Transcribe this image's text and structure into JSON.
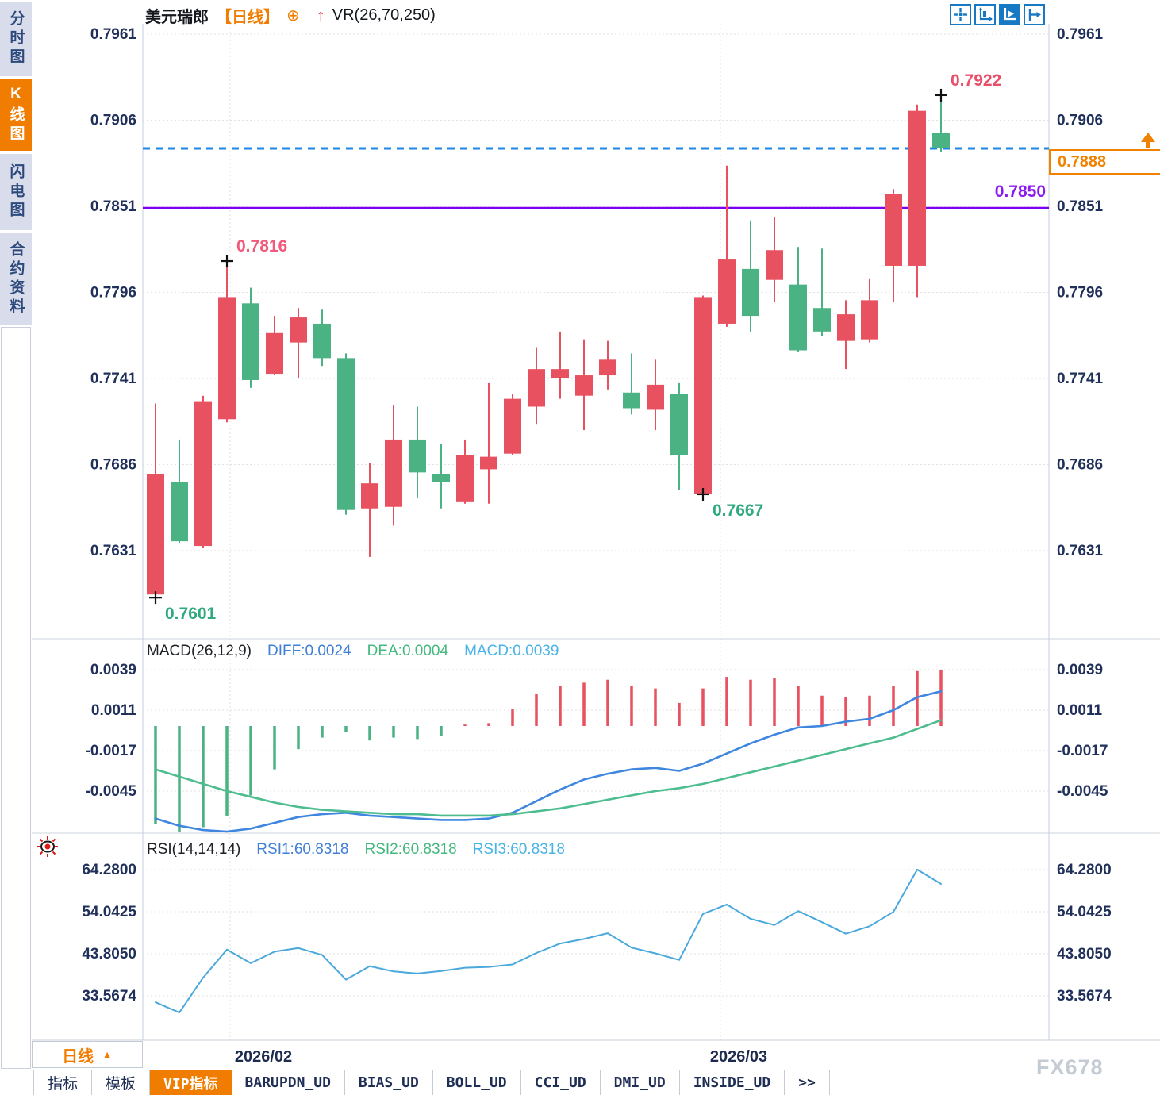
{
  "window": {
    "watermark": "FX678"
  },
  "sidebar": {
    "tabs": [
      {
        "label": "分时图",
        "active": false
      },
      {
        "label": "K线图",
        "active": true
      },
      {
        "label": "闪电图",
        "active": false
      },
      {
        "label": "合约资料",
        "active": false
      }
    ]
  },
  "header": {
    "symbol": "美元瑞郎",
    "period_tag": "【日线】",
    "indicator": "VR(26,70,250)",
    "crosshair_icon": "⊕",
    "up_arrow_icon": "↑"
  },
  "toolbar_icons": [
    "crosshair-pan-icon",
    "fit-axis-icon",
    "auto-scroll-latest-icon",
    "goto-latest-icon"
  ],
  "macd_panel": {
    "title": "MACD(26,12,9)",
    "diff": "DIFF:0.0024",
    "dea": "DEA:0.0004",
    "macd": "MACD:0.0039"
  },
  "rsi_panel": {
    "title": "RSI(14,14,14)",
    "rsi1": "RSI1:60.8318",
    "rsi2": "RSI2:60.8318",
    "rsi3": "RSI3:60.8318"
  },
  "support_label": {
    "value": "0.7850"
  },
  "price_box": {
    "value": "0.7888"
  },
  "period_selector": {
    "label": "日线",
    "arrow": "▲"
  },
  "bottom_tabs": [
    {
      "label": "指标",
      "active": false
    },
    {
      "label": "模板",
      "active": false
    },
    {
      "label": "VIP指标",
      "active": true
    },
    {
      "label": "BARUPDN_UD",
      "active": false
    },
    {
      "label": "BIAS_UD",
      "active": false
    },
    {
      "label": "BOLL_UD",
      "active": false
    },
    {
      "label": "CCI_UD",
      "active": false
    },
    {
      "label": "DMI_UD",
      "active": false
    },
    {
      "label": "INSIDE_UD",
      "active": false
    },
    {
      "label": ">>",
      "active": false
    }
  ],
  "colors": {
    "accent_orange": "#f07d00",
    "up_candle": "#e8515f",
    "down_candle": "#4bb283",
    "support_line": "#7d00f5",
    "current_price_line": "#1e86e6",
    "diff_line": "#3e86e0",
    "dea_line": "#4dbd8f",
    "rsi_line": "#49a8dc",
    "axis_text": "#20305a",
    "grid": "#e2e2e2"
  },
  "chart_data": [
    {
      "type": "candlestick",
      "name": "price-panel",
      "title": "美元瑞郎 日线",
      "x_labels": [
        "2026/02",
        "2026/03"
      ],
      "y_ticks": [
        "0.7961",
        "0.7906",
        "0.7851",
        "0.7796",
        "0.7741",
        "0.7686",
        "0.7631"
      ],
      "ylim": [
        0.7575,
        0.7968
      ],
      "candles": [
        [
          0.7603,
          0.7725,
          0.7601,
          0.768
        ],
        [
          0.7675,
          0.7702,
          0.7636,
          0.7637
        ],
        [
          0.7634,
          0.773,
          0.7633,
          0.7726
        ],
        [
          0.7715,
          0.7816,
          0.7713,
          0.7793
        ],
        [
          0.7789,
          0.7799,
          0.7735,
          0.774
        ],
        [
          0.7744,
          0.7781,
          0.7743,
          0.777
        ],
        [
          0.7764,
          0.7786,
          0.7741,
          0.778
        ],
        [
          0.7776,
          0.7785,
          0.7749,
          0.7754
        ],
        [
          0.7754,
          0.7757,
          0.7654,
          0.7657
        ],
        [
          0.7658,
          0.7687,
          0.7627,
          0.7674
        ],
        [
          0.7659,
          0.7724,
          0.7647,
          0.7702
        ],
        [
          0.7702,
          0.7723,
          0.7665,
          0.7681
        ],
        [
          0.768,
          0.7699,
          0.7658,
          0.7675
        ],
        [
          0.7662,
          0.7702,
          0.7661,
          0.7692
        ],
        [
          0.7683,
          0.7738,
          0.7661,
          0.7691
        ],
        [
          0.7693,
          0.7731,
          0.7692,
          0.7728
        ],
        [
          0.7723,
          0.7761,
          0.7712,
          0.7747
        ],
        [
          0.7741,
          0.7771,
          0.7728,
          0.7747
        ],
        [
          0.773,
          0.7766,
          0.7708,
          0.7743
        ],
        [
          0.7743,
          0.7765,
          0.7734,
          0.7753
        ],
        [
          0.7732,
          0.7757,
          0.7718,
          0.7722
        ],
        [
          0.7721,
          0.7753,
          0.7708,
          0.7737
        ],
        [
          0.7731,
          0.7738,
          0.767,
          0.7692
        ],
        [
          0.7667,
          0.7794,
          0.7667,
          0.7793
        ],
        [
          0.7776,
          0.7877,
          0.7774,
          0.7817
        ],
        [
          0.7811,
          0.7842,
          0.7771,
          0.7781
        ],
        [
          0.7804,
          0.7844,
          0.779,
          0.7823
        ],
        [
          0.7801,
          0.7825,
          0.7758,
          0.7759
        ],
        [
          0.7786,
          0.7824,
          0.7768,
          0.7771
        ],
        [
          0.7765,
          0.7791,
          0.7747,
          0.7782
        ],
        [
          0.7766,
          0.7805,
          0.7764,
          0.7791
        ],
        [
          0.7813,
          0.7862,
          0.779,
          0.7859
        ],
        [
          0.7813,
          0.7916,
          0.7793,
          0.7912
        ],
        [
          0.7898,
          0.7922,
          0.7886,
          0.7888
        ]
      ],
      "hlines": [
        {
          "price": 0.785,
          "label": "0.7850",
          "style": "solid",
          "color": "#7d00f5"
        },
        {
          "price": 0.7888,
          "label": "0.7888",
          "style": "dashed",
          "color": "#1e86e6"
        }
      ],
      "annotations": [
        {
          "label": "0.7816",
          "candle": 4,
          "anchor": "high",
          "color": "#f2597a"
        },
        {
          "label": "0.7601",
          "candle": 1,
          "anchor": "low",
          "color": "#2fa97e"
        },
        {
          "label": "0.7667",
          "candle": 24,
          "anchor": "low",
          "color": "#2fa97e"
        },
        {
          "label": "0.7922",
          "candle": 34,
          "anchor": "high",
          "color": "#e8506a"
        }
      ]
    },
    {
      "type": "bar",
      "name": "macd-panel",
      "title": "MACD(26,12,9)",
      "y_ticks": [
        "0.0039",
        "0.0011",
        "-0.0017",
        "-0.0045"
      ],
      "histogram": [
        -0.0068,
        -0.0073,
        -0.007,
        -0.0062,
        -0.0048,
        -0.003,
        -0.0016,
        -0.0008,
        -0.0004,
        -0.001,
        -0.0008,
        -0.0009,
        -0.0007,
        0.0001,
        0.0002,
        0.0012,
        0.0022,
        0.0028,
        0.003,
        0.0032,
        0.0028,
        0.0026,
        0.0016,
        0.0026,
        0.0034,
        0.0032,
        0.0033,
        0.0028,
        0.0021,
        0.002,
        0.0021,
        0.0028,
        0.0038,
        0.0039
      ],
      "diff": [
        -0.0064,
        -0.0069,
        -0.0072,
        -0.0073,
        -0.0071,
        -0.0067,
        -0.0063,
        -0.0061,
        -0.006,
        -0.0062,
        -0.0063,
        -0.0064,
        -0.0065,
        -0.0065,
        -0.0064,
        -0.006,
        -0.0052,
        -0.0044,
        -0.0037,
        -0.0033,
        -0.003,
        -0.0029,
        -0.0031,
        -0.0026,
        -0.0019,
        -0.0012,
        -0.0006,
        -0.0001,
        0.0,
        0.0003,
        0.0005,
        0.0011,
        0.002,
        0.0024
      ],
      "dea": [
        -0.003,
        -0.0035,
        -0.004,
        -0.0045,
        -0.0049,
        -0.0053,
        -0.0056,
        -0.0058,
        -0.0059,
        -0.006,
        -0.0061,
        -0.0061,
        -0.0062,
        -0.0062,
        -0.0062,
        -0.0061,
        -0.0059,
        -0.0057,
        -0.0054,
        -0.0051,
        -0.0048,
        -0.0045,
        -0.0043,
        -0.004,
        -0.0036,
        -0.0032,
        -0.0028,
        -0.0024,
        -0.002,
        -0.0016,
        -0.0012,
        -0.0008,
        -0.0002,
        0.0004
      ]
    },
    {
      "type": "line",
      "name": "rsi-panel",
      "title": "RSI(14,14,14)",
      "y_ticks": [
        "64.2800",
        "54.0425",
        "43.8050",
        "33.5674"
      ],
      "values": [
        32.0,
        29.5,
        38.0,
        44.8,
        41.5,
        44.3,
        45.2,
        43.5,
        37.5,
        40.8,
        39.5,
        39.0,
        39.6,
        40.4,
        40.6,
        41.2,
        44.0,
        46.3,
        47.4,
        48.8,
        45.3,
        43.9,
        42.3,
        53.5,
        55.8,
        52.3,
        50.8,
        54.2,
        51.5,
        48.7,
        50.5,
        54.0,
        64.3,
        60.8
      ]
    }
  ]
}
